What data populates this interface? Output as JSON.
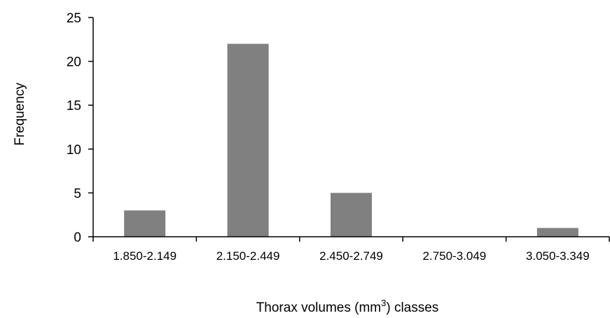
{
  "chart_data": {
    "type": "bar",
    "categories": [
      "1.850-2.149",
      "2.150-2.449",
      "2.450-2.749",
      "2.750-3.049",
      "3.050-3.349"
    ],
    "values": [
      3,
      22,
      5,
      0,
      1
    ],
    "ylabel": "Frequency",
    "xlabel": {
      "prefix": "Thorax volumes (mm",
      "superscript": "3",
      "suffix": ") classes"
    },
    "ylim": [
      0,
      25
    ],
    "yticks": [
      0,
      5,
      10,
      15,
      20,
      25
    ],
    "grid": false,
    "bar_color": "#808080",
    "axis_color": "#000000"
  }
}
